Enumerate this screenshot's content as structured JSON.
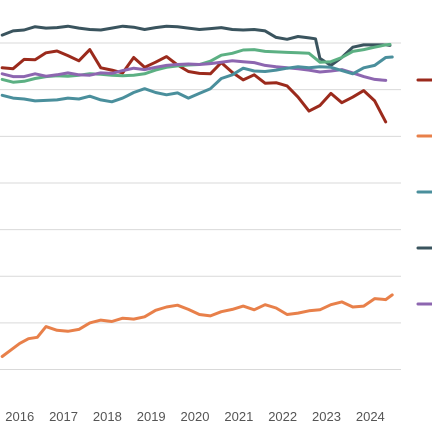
{
  "chart_data": {
    "type": "line",
    "xlabel": "",
    "ylabel": "",
    "x_ticks": [
      "2016",
      "2017",
      "2018",
      "2019",
      "2020",
      "2021",
      "2022",
      "2023",
      "2024"
    ],
    "x_range": [
      2015.55,
      2024.7
    ],
    "y_range": [
      0,
      100
    ],
    "y_gridlines": [
      90,
      80,
      70,
      60,
      50,
      40,
      30,
      20
    ],
    "grid": "horizontal",
    "legend": "right",
    "series": [
      {
        "color": "#3a545e",
        "points": [
          [
            2015.6,
            91.7
          ],
          [
            2015.85,
            92.6
          ],
          [
            2016.1,
            92.8
          ],
          [
            2016.35,
            93.5
          ],
          [
            2016.6,
            93.2
          ],
          [
            2016.85,
            93.3
          ],
          [
            2017.1,
            93.6
          ],
          [
            2017.35,
            93.2
          ],
          [
            2017.6,
            92.9
          ],
          [
            2017.85,
            92.8
          ],
          [
            2018.1,
            93.2
          ],
          [
            2018.35,
            93.6
          ],
          [
            2018.6,
            93.4
          ],
          [
            2018.85,
            92.9
          ],
          [
            2019.1,
            93.3
          ],
          [
            2019.35,
            93.6
          ],
          [
            2019.6,
            93.5
          ],
          [
            2019.85,
            93.2
          ],
          [
            2020.1,
            92.9
          ],
          [
            2020.35,
            93.1
          ],
          [
            2020.6,
            93.3
          ],
          [
            2020.85,
            92.9
          ],
          [
            2021.1,
            92.8
          ],
          [
            2021.35,
            92.9
          ],
          [
            2021.6,
            92.6
          ],
          [
            2021.85,
            91.2
          ],
          [
            2022.1,
            90.8
          ],
          [
            2022.35,
            91.4
          ],
          [
            2022.6,
            91.1
          ],
          [
            2022.75,
            90.9
          ],
          [
            2022.85,
            86.7
          ],
          [
            2023.1,
            85.2
          ],
          [
            2023.35,
            86.9
          ],
          [
            2023.6,
            89.1
          ],
          [
            2023.85,
            89.6
          ],
          [
            2024.1,
            89.6
          ],
          [
            2024.35,
            89.6
          ],
          [
            2024.45,
            89.5
          ]
        ]
      },
      {
        "color": "#9b2a1c",
        "points": [
          [
            2015.6,
            84.7
          ],
          [
            2015.85,
            84.5
          ],
          [
            2016.1,
            86.5
          ],
          [
            2016.35,
            86.4
          ],
          [
            2016.6,
            87.9
          ],
          [
            2016.85,
            88.3
          ],
          [
            2017.1,
            87.3
          ],
          [
            2017.35,
            86.2
          ],
          [
            2017.6,
            88.6
          ],
          [
            2017.85,
            84.7
          ],
          [
            2018.1,
            84.2
          ],
          [
            2018.35,
            83.6
          ],
          [
            2018.6,
            86.9
          ],
          [
            2018.85,
            84.8
          ],
          [
            2019.1,
            85.9
          ],
          [
            2019.35,
            87.1
          ],
          [
            2019.6,
            85.3
          ],
          [
            2019.85,
            83.9
          ],
          [
            2020.1,
            83.5
          ],
          [
            2020.35,
            83.4
          ],
          [
            2020.6,
            85.8
          ],
          [
            2020.85,
            83.7
          ],
          [
            2021.1,
            82.1
          ],
          [
            2021.35,
            83.2
          ],
          [
            2021.6,
            81.4
          ],
          [
            2021.85,
            81.5
          ],
          [
            2022.1,
            80.8
          ],
          [
            2022.35,
            78.4
          ],
          [
            2022.6,
            75.4
          ],
          [
            2022.85,
            76.6
          ],
          [
            2023.1,
            79.2
          ],
          [
            2023.35,
            77.2
          ],
          [
            2023.6,
            78.4
          ],
          [
            2023.85,
            79.8
          ],
          [
            2024.1,
            77.6
          ],
          [
            2024.35,
            73.1
          ]
        ]
      },
      {
        "color": "#5cb083",
        "points": [
          [
            2015.6,
            82.2
          ],
          [
            2015.85,
            81.6
          ],
          [
            2016.1,
            81.8
          ],
          [
            2016.35,
            82.4
          ],
          [
            2016.6,
            82.8
          ],
          [
            2016.85,
            83.0
          ],
          [
            2017.1,
            82.9
          ],
          [
            2017.35,
            83.1
          ],
          [
            2017.6,
            83.4
          ],
          [
            2017.85,
            83.3
          ],
          [
            2018.1,
            83.1
          ],
          [
            2018.35,
            83.0
          ],
          [
            2018.6,
            83.1
          ],
          [
            2018.85,
            83.4
          ],
          [
            2019.1,
            84.2
          ],
          [
            2019.35,
            84.8
          ],
          [
            2019.6,
            85.1
          ],
          [
            2019.85,
            85.3
          ],
          [
            2020.1,
            85.4
          ],
          [
            2020.35,
            86.1
          ],
          [
            2020.6,
            87.4
          ],
          [
            2020.85,
            87.8
          ],
          [
            2021.1,
            88.5
          ],
          [
            2021.35,
            88.6
          ],
          [
            2021.6,
            88.2
          ],
          [
            2021.85,
            88.1
          ],
          [
            2022.1,
            88.0
          ],
          [
            2022.35,
            87.9
          ],
          [
            2022.6,
            87.8
          ],
          [
            2022.85,
            85.9
          ],
          [
            2023.1,
            86.0
          ],
          [
            2023.35,
            86.9
          ],
          [
            2023.6,
            88.2
          ],
          [
            2023.85,
            88.6
          ],
          [
            2024.1,
            89.1
          ],
          [
            2024.35,
            89.6
          ],
          [
            2024.45,
            89.7
          ]
        ]
      },
      {
        "color": "#8d66b0",
        "points": [
          [
            2015.6,
            83.4
          ],
          [
            2015.85,
            82.8
          ],
          [
            2016.1,
            82.8
          ],
          [
            2016.35,
            83.4
          ],
          [
            2016.6,
            82.9
          ],
          [
            2016.85,
            83.2
          ],
          [
            2017.1,
            83.6
          ],
          [
            2017.35,
            83.2
          ],
          [
            2017.6,
            83.1
          ],
          [
            2017.85,
            83.6
          ],
          [
            2018.1,
            83.5
          ],
          [
            2018.35,
            84.1
          ],
          [
            2018.6,
            84.6
          ],
          [
            2018.85,
            84.3
          ],
          [
            2019.1,
            84.8
          ],
          [
            2019.35,
            85.2
          ],
          [
            2019.6,
            85.4
          ],
          [
            2019.85,
            85.5
          ],
          [
            2020.1,
            85.4
          ],
          [
            2020.35,
            85.6
          ],
          [
            2020.6,
            85.9
          ],
          [
            2020.85,
            86.2
          ],
          [
            2021.1,
            86.0
          ],
          [
            2021.35,
            85.8
          ],
          [
            2021.6,
            85.2
          ],
          [
            2021.85,
            84.9
          ],
          [
            2022.1,
            84.7
          ],
          [
            2022.35,
            84.5
          ],
          [
            2022.6,
            84.2
          ],
          [
            2022.85,
            83.8
          ],
          [
            2023.1,
            84.0
          ],
          [
            2023.35,
            84.3
          ],
          [
            2023.6,
            83.6
          ],
          [
            2023.85,
            82.8
          ],
          [
            2024.1,
            82.2
          ],
          [
            2024.35,
            82.0
          ]
        ]
      },
      {
        "color": "#4a8f9c",
        "points": [
          [
            2015.6,
            78.8
          ],
          [
            2015.85,
            78.2
          ],
          [
            2016.1,
            78.0
          ],
          [
            2016.35,
            77.6
          ],
          [
            2016.6,
            77.7
          ],
          [
            2016.85,
            77.8
          ],
          [
            2017.1,
            78.2
          ],
          [
            2017.35,
            78.0
          ],
          [
            2017.6,
            78.6
          ],
          [
            2017.85,
            77.8
          ],
          [
            2018.1,
            77.4
          ],
          [
            2018.35,
            78.2
          ],
          [
            2018.6,
            79.4
          ],
          [
            2018.85,
            80.2
          ],
          [
            2019.1,
            79.4
          ],
          [
            2019.35,
            78.9
          ],
          [
            2019.6,
            79.3
          ],
          [
            2019.85,
            78.2
          ],
          [
            2020.1,
            79.2
          ],
          [
            2020.35,
            80.2
          ],
          [
            2020.6,
            82.4
          ],
          [
            2020.85,
            83.2
          ],
          [
            2021.1,
            84.6
          ],
          [
            2021.35,
            84.0
          ],
          [
            2021.6,
            83.9
          ],
          [
            2021.85,
            84.2
          ],
          [
            2022.1,
            84.6
          ],
          [
            2022.35,
            84.9
          ],
          [
            2022.6,
            84.7
          ],
          [
            2022.85,
            84.9
          ],
          [
            2023.1,
            84.8
          ],
          [
            2023.35,
            84.1
          ],
          [
            2023.6,
            83.4
          ],
          [
            2023.85,
            84.7
          ],
          [
            2024.1,
            85.2
          ],
          [
            2024.35,
            86.9
          ],
          [
            2024.5,
            87.0
          ]
        ]
      },
      {
        "color": "#e8804a",
        "points": [
          [
            2015.6,
            22.8
          ],
          [
            2015.8,
            24.2
          ],
          [
            2016.0,
            25.6
          ],
          [
            2016.2,
            26.6
          ],
          [
            2016.4,
            26.9
          ],
          [
            2016.6,
            29.2
          ],
          [
            2016.85,
            28.4
          ],
          [
            2017.1,
            28.2
          ],
          [
            2017.35,
            28.6
          ],
          [
            2017.6,
            30.0
          ],
          [
            2017.85,
            30.6
          ],
          [
            2018.1,
            30.3
          ],
          [
            2018.35,
            31.0
          ],
          [
            2018.6,
            30.8
          ],
          [
            2018.85,
            31.3
          ],
          [
            2019.1,
            32.7
          ],
          [
            2019.35,
            33.4
          ],
          [
            2019.6,
            33.8
          ],
          [
            2019.85,
            32.9
          ],
          [
            2020.1,
            31.8
          ],
          [
            2020.35,
            31.5
          ],
          [
            2020.6,
            32.4
          ],
          [
            2020.85,
            32.9
          ],
          [
            2021.1,
            33.6
          ],
          [
            2021.35,
            32.8
          ],
          [
            2021.6,
            33.9
          ],
          [
            2021.85,
            33.2
          ],
          [
            2022.1,
            31.8
          ],
          [
            2022.35,
            32.1
          ],
          [
            2022.6,
            32.6
          ],
          [
            2022.85,
            32.8
          ],
          [
            2023.1,
            33.9
          ],
          [
            2023.35,
            34.5
          ],
          [
            2023.6,
            33.4
          ],
          [
            2023.85,
            33.6
          ],
          [
            2024.1,
            35.2
          ],
          [
            2024.35,
            35.0
          ],
          [
            2024.5,
            36.0
          ]
        ]
      }
    ],
    "legend_entries": [
      {
        "color": "#9b2a1c"
      },
      {
        "color": "#e8804a"
      },
      {
        "color": "#4a8f9c"
      },
      {
        "color": "#3a545e"
      },
      {
        "color": "#8d66b0"
      }
    ]
  }
}
